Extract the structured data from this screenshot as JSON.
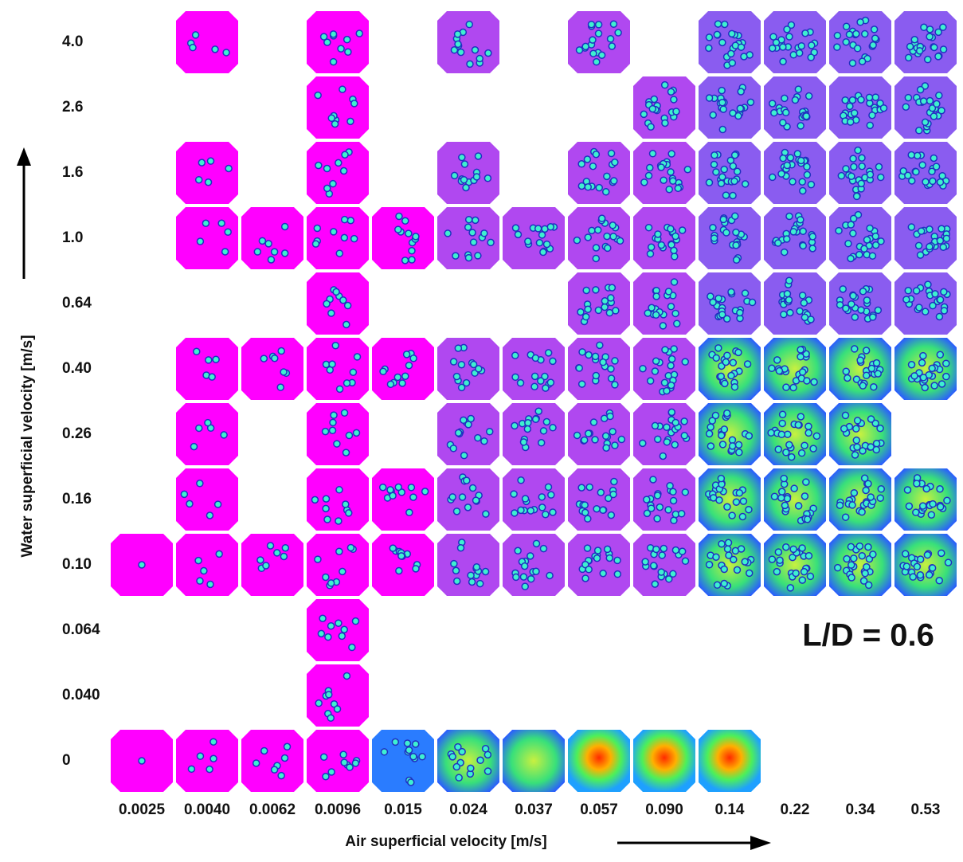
{
  "chart_data": {
    "type": "regime-map",
    "x_label": "Air superficial velocity [m/s]",
    "y_label": "Water superficial velocity [m/s]",
    "annotation": "L/D = 0.6",
    "categories": [
      "0.0025",
      "0.0040",
      "0.0062",
      "0.0096",
      "0.015",
      "0.024",
      "0.037",
      "0.057",
      "0.090",
      "0.14",
      "0.22",
      "0.34",
      "0.53"
    ],
    "rows": [
      {
        "label": "4.0",
        "cells": [
          1,
          3,
          5,
          7,
          9,
          10,
          11,
          12
        ]
      },
      {
        "label": "2.6",
        "cells": [
          3,
          8,
          9,
          10,
          11,
          12
        ]
      },
      {
        "label": "1.6",
        "cells": [
          1,
          3,
          5,
          7,
          8,
          9,
          10,
          11,
          12
        ]
      },
      {
        "label": "1.0",
        "cells": [
          1,
          2,
          3,
          4,
          5,
          6,
          7,
          8,
          9,
          10,
          11,
          12
        ]
      },
      {
        "label": "0.64",
        "cells": [
          3,
          7,
          8,
          9,
          10,
          11,
          12
        ]
      },
      {
        "label": "0.40",
        "cells": [
          1,
          2,
          3,
          4,
          5,
          6,
          7,
          8,
          9,
          10,
          11,
          12
        ]
      },
      {
        "label": "0.26",
        "cells": [
          1,
          3,
          5,
          6,
          7,
          8,
          9,
          10,
          11
        ]
      },
      {
        "label": "0.16",
        "cells": [
          1,
          3,
          4,
          5,
          6,
          7,
          8,
          9,
          10,
          11,
          12
        ]
      },
      {
        "label": "0.10",
        "cells": [
          0,
          1,
          2,
          3,
          4,
          5,
          6,
          7,
          8,
          9,
          10,
          11,
          12
        ]
      },
      {
        "label": "0.064",
        "cells": [
          3
        ]
      },
      {
        "label": "0.040",
        "cells": [
          3
        ]
      },
      {
        "label": "0",
        "cells": [
          0,
          1,
          2,
          3,
          4,
          5,
          6,
          7,
          8,
          9
        ]
      }
    ]
  }
}
